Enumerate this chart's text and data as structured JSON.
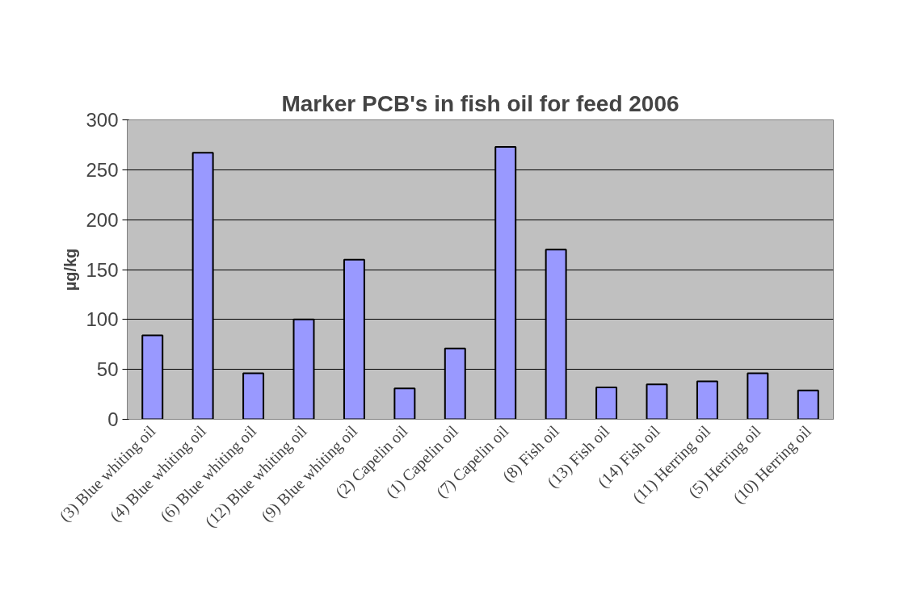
{
  "chart_data": {
    "type": "bar",
    "title": "Marker PCB's in fish oil for feed 2006",
    "ylabel": "µg/kg",
    "categories": [
      "(3) Blue whiting oil",
      "(4) Blue whiting oil",
      "(6) Blue whiting oil",
      "(12) Blue whiting oil",
      "(9) Blue whiting oil",
      "(2) Capelin oil",
      "(1) Capelin oil",
      "(7) Capelin oil",
      "(8) Fish oil",
      "(13) Fish oil",
      "(14) Fish oil",
      "(11) Herring oil",
      "(5) Herring oil",
      "(10) Herring oil"
    ],
    "values": [
      84,
      267,
      46,
      100,
      160,
      31,
      71,
      273,
      170,
      32,
      35,
      38,
      46,
      29
    ],
    "color": "#9999ff",
    "ylim": [
      0,
      300
    ],
    "yticks": [
      0,
      50,
      100,
      150,
      200,
      250,
      300
    ],
    "grid": "y"
  }
}
